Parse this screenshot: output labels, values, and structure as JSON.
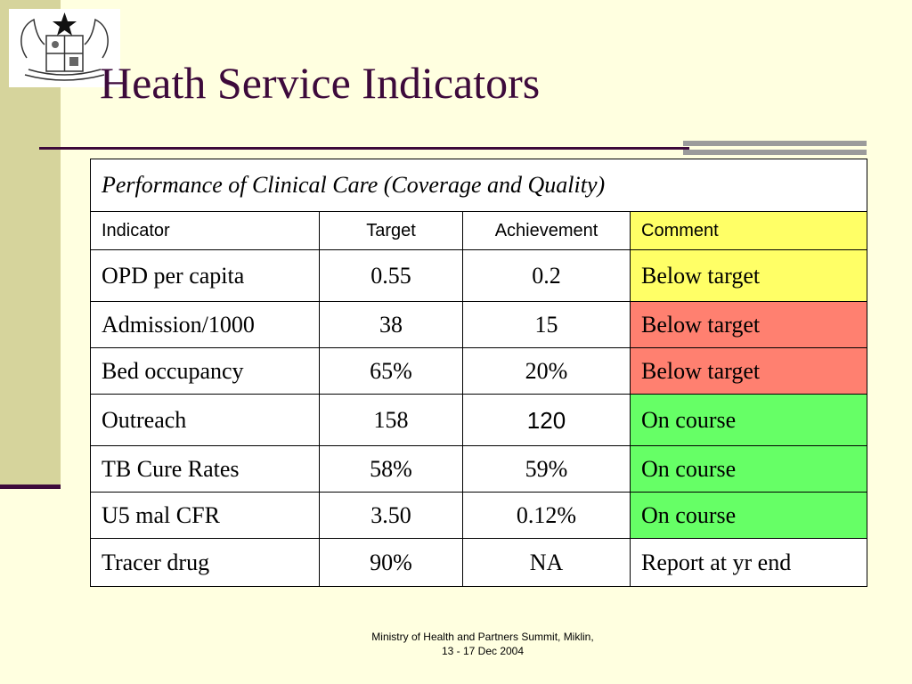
{
  "slide": {
    "title": "Heath Service Indicators",
    "footer_line1": "Ministry of Health and Partners Summit, Miklin,",
    "footer_line2": "13 - 17 Dec 2004"
  },
  "colors": {
    "background": "#ffffe0",
    "title": "#3d0a3b",
    "yellow": "#ffff66",
    "red": "#ff8070",
    "green": "#66ff66"
  },
  "table": {
    "caption": "Performance of Clinical Care (Coverage and Quality)",
    "headers": [
      "Indicator",
      "Target",
      "Achievement",
      "Comment"
    ],
    "rows": [
      [
        "OPD per capita",
        "0.55",
        "0.2",
        "Below target"
      ],
      [
        "Admission/1000",
        "38",
        "15",
        "Below target"
      ],
      [
        "Bed occupancy",
        "65%",
        "20%",
        "Below target"
      ],
      [
        "Outreach",
        "158",
        "120",
        "On course"
      ],
      [
        "TB Cure Rates",
        "58%",
        "59%",
        "On course"
      ],
      [
        "U5 mal CFR",
        "3.50",
        "0.12%",
        "On course"
      ],
      [
        "Tracer drug",
        "90%",
        "NA",
        "Report at yr end"
      ]
    ],
    "comment_status": [
      "yellow",
      "red",
      "red",
      "green",
      "green",
      "green",
      "white"
    ]
  }
}
